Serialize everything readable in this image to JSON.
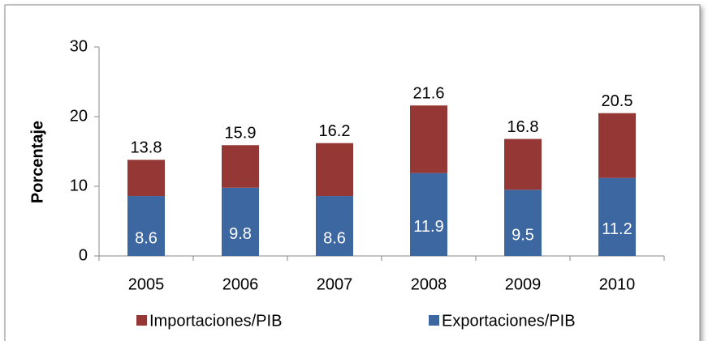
{
  "chart_data": {
    "type": "stacked_bar",
    "ylabel": "Porcentaje",
    "categories": [
      "2005",
      "2006",
      "2007",
      "2008",
      "2009",
      "2010"
    ],
    "series": [
      {
        "name": "Exportaciones/PIB",
        "color": "#3d67a0",
        "values": [
          8.6,
          9.8,
          8.6,
          11.9,
          9.5,
          11.2
        ]
      },
      {
        "name": "Importaciones/PIB",
        "color": "#953735",
        "values": [
          5.2,
          6.1,
          7.6,
          9.7,
          7.3,
          9.3
        ]
      }
    ],
    "totals": [
      13.8,
      15.9,
      16.2,
      21.6,
      16.8,
      20.5
    ],
    "ylim": [
      0,
      30
    ],
    "yticks": [
      0,
      10,
      20,
      30
    ],
    "legend": "bottom"
  }
}
